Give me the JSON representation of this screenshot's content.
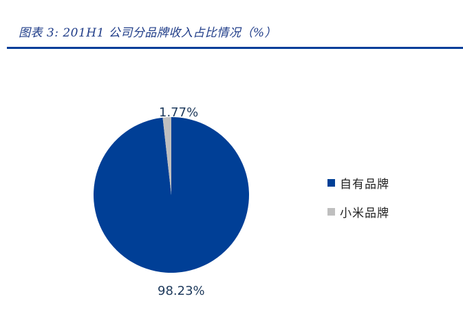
{
  "header": {
    "title": "图表 3:  201H1 公司分品牌收入占比情况（%）"
  },
  "colors": {
    "accent": "#003d99",
    "own_brand": "#003f96",
    "xiaomi_brand": "#bfbfbf"
  },
  "labels": {
    "small_slice": "1.77%",
    "large_slice": "98.23%"
  },
  "legend": {
    "items": [
      {
        "label": "自有品牌",
        "color": "#003f96"
      },
      {
        "label": "小米品牌",
        "color": "#bfbfbf"
      }
    ]
  },
  "chart_data": {
    "type": "pie",
    "title": "图表 3:  201H1 公司分品牌收入占比情况（%）",
    "categories": [
      "自有品牌",
      "小米品牌"
    ],
    "values": [
      98.23,
      1.77
    ],
    "unit": "%",
    "colors": [
      "#003f96",
      "#bfbfbf"
    ],
    "legend_position": "right",
    "data_labels": [
      "98.23%",
      "1.77%"
    ]
  }
}
